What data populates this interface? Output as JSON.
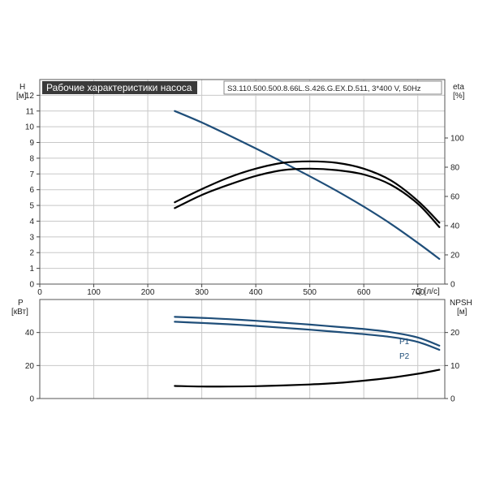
{
  "chart_data": [
    {
      "type": "line",
      "title": "Рабочие характеристики насоса",
      "subtitle": "S3.110.500.500.8.66L.S.426.G.EX.D.511, 3*400 V, 50Hz",
      "x_ticks": [
        "0",
        "100",
        "200",
        "300",
        "400",
        "500",
        "600",
        "700"
      ],
      "xlabel": "Q [л/с]",
      "xlim": [
        0,
        750
      ],
      "ylabel_left": "H",
      "ylabel_left_unit": "[м]",
      "ylim_left": [
        0,
        13
      ],
      "y_ticks_left": [
        "0",
        "1",
        "2",
        "3",
        "4",
        "5",
        "6",
        "7",
        "8",
        "9",
        "10",
        "11",
        "12"
      ],
      "ylabel_right": "eta",
      "ylabel_right_unit": "[%]",
      "ylim_right": [
        0,
        140
      ],
      "y_ticks_right": [
        "0",
        "20",
        "40",
        "60",
        "80",
        "100"
      ],
      "grid": true,
      "series": [
        {
          "key": "head",
          "axis": "left",
          "color": "#1f4e79",
          "x": [
            250,
            300,
            350,
            400,
            450,
            500,
            550,
            600,
            650,
            700,
            740
          ],
          "y": [
            11.0,
            10.27,
            9.46,
            8.62,
            7.75,
            6.85,
            5.92,
            4.92,
            3.83,
            2.62,
            1.6
          ]
        },
        {
          "key": "eta_upper",
          "axis": "right",
          "color": "#000000",
          "x": [
            250,
            300,
            350,
            400,
            450,
            500,
            550,
            600,
            650,
            700,
            740
          ],
          "y": [
            56,
            65,
            73,
            79,
            83,
            84,
            83,
            79,
            71,
            57,
            42
          ]
        },
        {
          "key": "eta_lower",
          "axis": "right",
          "color": "#000000",
          "x": [
            250,
            300,
            350,
            400,
            450,
            500,
            550,
            600,
            650,
            700,
            740
          ],
          "y": [
            52,
            61,
            68,
            74,
            78,
            79,
            78,
            75,
            68,
            55,
            39
          ]
        }
      ]
    },
    {
      "type": "line",
      "x_ticks": [],
      "xlim": [
        0,
        750
      ],
      "ylabel_left": "P",
      "ylabel_left_unit": "[кВт]",
      "ylim_left": [
        0,
        60
      ],
      "y_ticks_left": [
        "0",
        "20",
        "40"
      ],
      "ylabel_right": "NPSH",
      "ylabel_right_unit": "[м]",
      "ylim_right": [
        0,
        30
      ],
      "y_ticks_right": [
        "0",
        "10",
        "20"
      ],
      "grid": true,
      "series": [
        {
          "key": "P1",
          "name": "P1",
          "axis": "left",
          "color": "#1f4e79",
          "x": [
            250,
            300,
            350,
            400,
            450,
            500,
            550,
            600,
            650,
            700,
            740
          ],
          "y": [
            49.5,
            48.9,
            48.1,
            47.1,
            46.0,
            44.8,
            43.5,
            42.1,
            40.2,
            37.0,
            32.0
          ]
        },
        {
          "key": "P2",
          "name": "P2",
          "axis": "left",
          "color": "#1f4e79",
          "x": [
            250,
            300,
            350,
            400,
            450,
            500,
            550,
            600,
            650,
            700,
            740
          ],
          "y": [
            46.5,
            45.8,
            45.0,
            44.0,
            42.9,
            41.7,
            40.4,
            39.0,
            37.3,
            34.3,
            29.5
          ]
        },
        {
          "key": "NPSH",
          "axis": "right",
          "color": "#000000",
          "x": [
            250,
            300,
            350,
            400,
            450,
            500,
            550,
            600,
            650,
            700,
            740
          ],
          "y": [
            3.8,
            3.65,
            3.65,
            3.75,
            3.95,
            4.25,
            4.7,
            5.4,
            6.3,
            7.5,
            8.7
          ]
        }
      ]
    }
  ]
}
